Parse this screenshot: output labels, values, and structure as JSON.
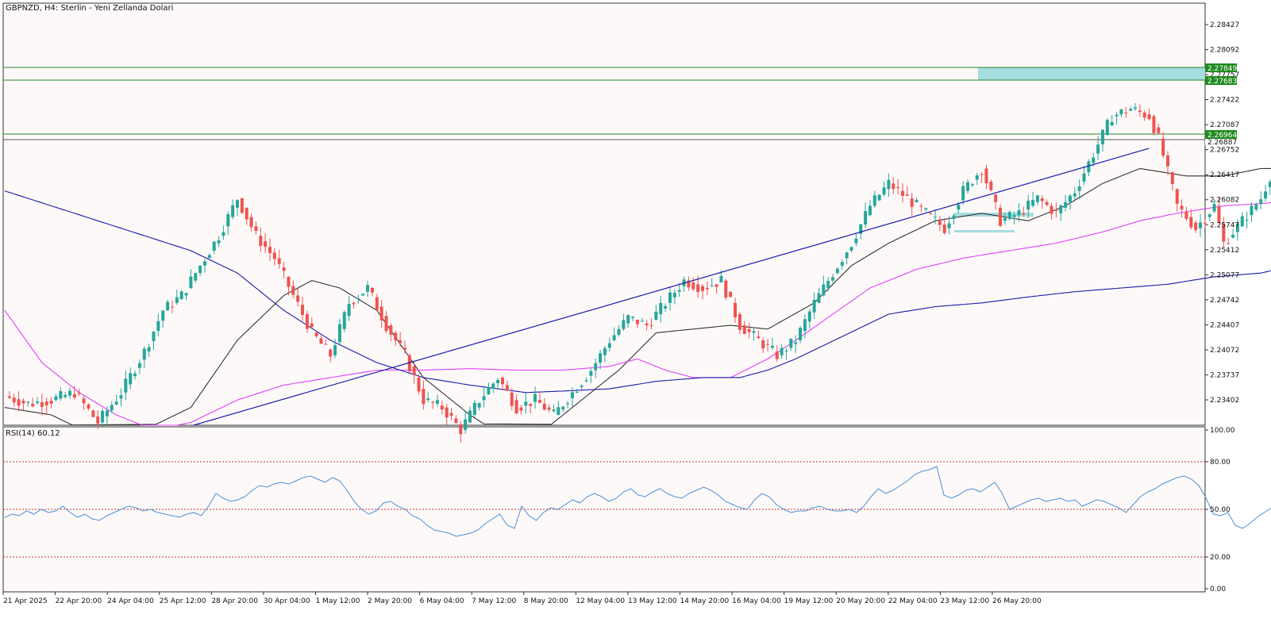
{
  "header": {
    "title": "GBPNZD, H4:  Sterlin - Yeni Zellanda Dolari"
  },
  "rsi_panel": {
    "label": "RSI(14) 60.12"
  },
  "colors": {
    "bull": "#26a69a",
    "bear": "#ef5350",
    "ma_dark": "#333333",
    "ma_magenta": "#e040fb",
    "ma_blue": "#1a1aa8",
    "trendline": "#1a1aa8",
    "hline_green": "#1e8a1e",
    "zone": "#a6dde0",
    "rsi_line": "#4a90d9",
    "rsi_levels": "#c0392b"
  },
  "chart_data": [
    {
      "type": "candlestick",
      "title": "GBPNZD, H4:  Sterlin - Yeni Zellanda Dolari",
      "ylim": [
        2.231,
        2.287
      ],
      "yticks": [
        "2.28427",
        "2.28092",
        "2.27757",
        "2.27422",
        "2.27087",
        "2.26752",
        "2.26417",
        "2.26082",
        "2.25747",
        "2.25412",
        "2.25077",
        "2.24742",
        "2.24407",
        "2.24072",
        "2.23737",
        "2.23402"
      ],
      "xticks": [
        "21 Apr 2025",
        "22 Apr 20:00",
        "24 Apr 04:00",
        "25 Apr 12:00",
        "28 Apr 20:00",
        "30 Apr 04:00",
        "1 May 12:00",
        "2 May 20:00",
        "6 May 04:00",
        "7 May 12:00",
        "8 May 20:00",
        "12 May 04:00",
        "13 May 12:00",
        "14 May 20:00",
        "16 May 04:00",
        "19 May 12:00",
        "20 May 20:00",
        "22 May 04:00",
        "23 May 12:00",
        "26 May 20:00"
      ],
      "price_tags": [
        "2.27849",
        "2.27683",
        "2.26964",
        "2.26887"
      ],
      "horizontal_lines": [
        2.27849,
        2.27683,
        2.26964,
        2.26887
      ],
      "resistance_zone": [
        2.27683,
        2.27849
      ],
      "trendline": [
        [
          0,
          2.2233
        ],
        [
          246,
          2.2677
        ]
      ],
      "ohlc_anchors": [
        [
          0,
          2.2345
        ],
        [
          5,
          2.2335
        ],
        [
          10,
          2.234
        ],
        [
          15,
          2.235
        ],
        [
          20,
          2.231
        ],
        [
          25,
          2.235
        ],
        [
          30,
          2.2405
        ],
        [
          34,
          2.246
        ],
        [
          38,
          2.248
        ],
        [
          42,
          2.252
        ],
        [
          46,
          2.256
        ],
        [
          50,
          2.261
        ],
        [
          54,
          2.256
        ],
        [
          58,
          2.253
        ],
        [
          62,
          2.248
        ],
        [
          66,
          2.243
        ],
        [
          70,
          2.24
        ],
        [
          74,
          2.247
        ],
        [
          78,
          2.249
        ],
        [
          82,
          2.244
        ],
        [
          86,
          2.24
        ],
        [
          90,
          2.234
        ],
        [
          94,
          2.233
        ],
        [
          98,
          2.23
        ],
        [
          102,
          2.234
        ],
        [
          106,
          2.237
        ],
        [
          110,
          2.233
        ],
        [
          114,
          2.234
        ],
        [
          118,
          2.232
        ],
        [
          122,
          2.235
        ],
        [
          126,
          2.238
        ],
        [
          130,
          2.242
        ],
        [
          134,
          2.245
        ],
        [
          138,
          2.244
        ],
        [
          142,
          2.247
        ],
        [
          146,
          2.25
        ],
        [
          150,
          2.249
        ],
        [
          154,
          2.25
        ],
        [
          158,
          2.244
        ],
        [
          162,
          2.242
        ],
        [
          166,
          2.24
        ],
        [
          170,
          2.242
        ],
        [
          174,
          2.247
        ],
        [
          178,
          2.251
        ],
        [
          182,
          2.255
        ],
        [
          186,
          2.26
        ],
        [
          190,
          2.263
        ],
        [
          194,
          2.261
        ],
        [
          198,
          2.259
        ],
        [
          202,
          2.257
        ],
        [
          206,
          2.262
        ],
        [
          210,
          2.265
        ],
        [
          214,
          2.258
        ],
        [
          218,
          2.259
        ],
        [
          222,
          2.261
        ],
        [
          226,
          2.259
        ],
        [
          230,
          2.262
        ],
        [
          234,
          2.267
        ],
        [
          238,
          2.272
        ],
        [
          242,
          2.273
        ],
        [
          246,
          2.272
        ],
        [
          248,
          2.269
        ],
        [
          252,
          2.26
        ],
        [
          256,
          2.257
        ],
        [
          260,
          2.26
        ],
        [
          262,
          2.255
        ],
        [
          266,
          2.258
        ],
        [
          270,
          2.261
        ],
        [
          274,
          2.267
        ],
        [
          277,
          2.2692
        ]
      ],
      "moving_averages": [
        {
          "color": "dark",
          "points": [
            [
              0,
              2.233
            ],
            [
              10,
              2.232
            ],
            [
              20,
              2.229
            ],
            [
              30,
              2.23
            ],
            [
              40,
              2.233
            ],
            [
              50,
              2.242
            ],
            [
              60,
              2.248
            ],
            [
              66,
              2.25
            ],
            [
              72,
              2.249
            ],
            [
              80,
              2.246
            ],
            [
              90,
              2.237
            ],
            [
              100,
              2.232
            ],
            [
              110,
              2.228
            ],
            [
              116,
              2.23
            ],
            [
              122,
              2.233
            ],
            [
              132,
              2.238
            ],
            [
              140,
              2.243
            ],
            [
              148,
              2.2435
            ],
            [
              156,
              2.244
            ],
            [
              164,
              2.2435
            ],
            [
              174,
              2.247
            ],
            [
              182,
              2.252
            ],
            [
              190,
              2.255
            ],
            [
              200,
              2.258
            ],
            [
              210,
              2.259
            ],
            [
              220,
              2.258
            ],
            [
              228,
              2.26
            ],
            [
              236,
              2.263
            ],
            [
              244,
              2.265
            ],
            [
              254,
              2.264
            ],
            [
              262,
              2.264
            ],
            [
              270,
              2.265
            ],
            [
              277,
              2.265
            ]
          ]
        },
        {
          "color": "magenta",
          "points": [
            [
              0,
              2.246
            ],
            [
              8,
              2.239
            ],
            [
              16,
              2.235
            ],
            [
              24,
              2.232
            ],
            [
              32,
              2.23
            ],
            [
              40,
              2.231
            ],
            [
              50,
              2.234
            ],
            [
              60,
              2.236
            ],
            [
              70,
              2.237
            ],
            [
              80,
              2.238
            ],
            [
              90,
              2.238
            ],
            [
              100,
              2.2382
            ],
            [
              110,
              2.238
            ],
            [
              120,
              2.238
            ],
            [
              130,
              2.2385
            ],
            [
              136,
              2.2395
            ],
            [
              142,
              2.238
            ],
            [
              148,
              2.237
            ],
            [
              156,
              2.237
            ],
            [
              164,
              2.2395
            ],
            [
              170,
              2.242
            ],
            [
              178,
              2.2455
            ],
            [
              186,
              2.249
            ],
            [
              196,
              2.2515
            ],
            [
              206,
              2.253
            ],
            [
              216,
              2.254
            ],
            [
              226,
              2.255
            ],
            [
              236,
              2.2565
            ],
            [
              244,
              2.258
            ],
            [
              252,
              2.259
            ],
            [
              262,
              2.26
            ],
            [
              270,
              2.2603
            ],
            [
              277,
              2.2607
            ]
          ]
        },
        {
          "color": "blue",
          "points": [
            [
              0,
              2.262
            ],
            [
              10,
              2.26
            ],
            [
              20,
              2.258
            ],
            [
              30,
              2.256
            ],
            [
              40,
              2.254
            ],
            [
              50,
              2.251
            ],
            [
              60,
              2.246
            ],
            [
              70,
              2.242
            ],
            [
              80,
              2.239
            ],
            [
              90,
              2.237
            ],
            [
              100,
              2.236
            ],
            [
              106,
              2.2355
            ],
            [
              112,
              2.235
            ],
            [
              120,
              2.2352
            ],
            [
              130,
              2.2355
            ],
            [
              140,
              2.2365
            ],
            [
              150,
              2.237
            ],
            [
              158,
              2.237
            ],
            [
              164,
              2.238
            ],
            [
              170,
              2.2395
            ],
            [
              180,
              2.2425
            ],
            [
              190,
              2.2455
            ],
            [
              200,
              2.2465
            ],
            [
              210,
              2.247
            ],
            [
              220,
              2.2478
            ],
            [
              230,
              2.2485
            ],
            [
              240,
              2.249
            ],
            [
              250,
              2.2495
            ],
            [
              260,
              2.2505
            ],
            [
              270,
              2.251
            ],
            [
              277,
              2.252
            ]
          ]
        }
      ]
    },
    {
      "type": "line",
      "name": "RSI(14) 60.12",
      "ylim": [
        0,
        100
      ],
      "yticks": [
        "100.00",
        "80.00",
        "50.00",
        "20.00",
        "0.00"
      ],
      "levels": [
        80,
        50,
        20
      ],
      "values": [
        45,
        47,
        46,
        49,
        47,
        50,
        48,
        49,
        52,
        48,
        45,
        47,
        44,
        43,
        46,
        48,
        50,
        52,
        51,
        49,
        50,
        48,
        47,
        46,
        45,
        47,
        48,
        46,
        52,
        60,
        57,
        55,
        56,
        58,
        62,
        65,
        64,
        66,
        67,
        66,
        68,
        70,
        71,
        69,
        67,
        70,
        68,
        62,
        55,
        50,
        47,
        49,
        54,
        55,
        52,
        50,
        46,
        44,
        40,
        37,
        36,
        35,
        33,
        34,
        35,
        37,
        41,
        44,
        47,
        40,
        38,
        52,
        46,
        43,
        48,
        51,
        50,
        53,
        56,
        54,
        58,
        60,
        58,
        55,
        57,
        61,
        63,
        59,
        58,
        61,
        63,
        60,
        58,
        57,
        60,
        62,
        64,
        62,
        59,
        55,
        53,
        51,
        50,
        56,
        60,
        58,
        53,
        50,
        48,
        49,
        49,
        51,
        52,
        50,
        49,
        49,
        50,
        48,
        52,
        58,
        63,
        60,
        62,
        65,
        68,
        72,
        74,
        75,
        77,
        59,
        57,
        59,
        62,
        63,
        61,
        64,
        67,
        60,
        50,
        52,
        54,
        56,
        57,
        55,
        56,
        57,
        55,
        56,
        52,
        54,
        56,
        55,
        53,
        51,
        48,
        53,
        58,
        61,
        63,
        66,
        68,
        70,
        71,
        69,
        65,
        57,
        47,
        46,
        48,
        40,
        38,
        41,
        45,
        48,
        51,
        55,
        58,
        60
      ]
    }
  ]
}
